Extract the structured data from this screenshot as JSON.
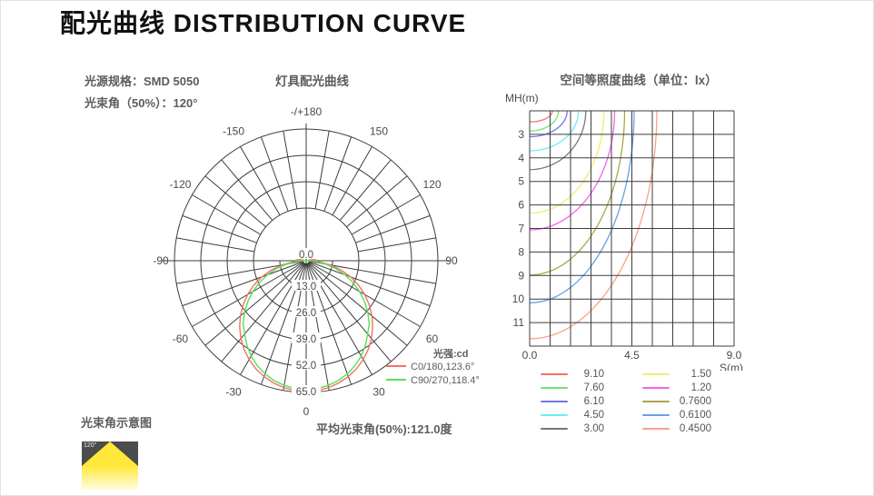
{
  "page_title": "配光曲线 DISTRIBUTION CURVE",
  "left_panel": {
    "spec_line1": "光源规格：SMD 5050",
    "spec_line2": "光束角（50%）：120°",
    "avg_beam_text": "平均光束角(50%):121.0度",
    "beam_schematic": {
      "label": "光束角示意图",
      "angle_text": "120°"
    }
  },
  "colors": {
    "grid_line": "#3d3d3d",
    "label_text": "#4a4a4a",
    "c0_curve": "#f47068",
    "c90_curve": "#57e057"
  },
  "chart_data": [
    {
      "type": "line",
      "variant": "polar-photometric",
      "title": "灯具配光曲线",
      "unit_label": "光强:cd",
      "rmax": 65,
      "ring_labels": [
        "0.0",
        "13.0",
        "26.0",
        "39.0",
        "52.0",
        "65.0"
      ],
      "angle_labels": [
        {
          "deg": 180,
          "label": "-/+180"
        },
        {
          "deg": 150,
          "label": "150"
        },
        {
          "deg": 120,
          "label": "120"
        },
        {
          "deg": 90,
          "label": "90"
        },
        {
          "deg": 60,
          "label": "60"
        },
        {
          "deg": 30,
          "label": "30"
        },
        {
          "deg": 0,
          "label": "0"
        },
        {
          "deg": -30,
          "label": "-30"
        },
        {
          "deg": -60,
          "label": "-60"
        },
        {
          "deg": -90,
          "label": "-90"
        },
        {
          "deg": -120,
          "label": "-120"
        },
        {
          "deg": -150,
          "label": "-150"
        }
      ],
      "series": [
        {
          "name": "C0/180,123.6°",
          "color": "#f47068",
          "angle_start": 0,
          "angle_step": 5,
          "cd": [
            64.5,
            64.3,
            63.6,
            62.4,
            60.8,
            58.8,
            56.3,
            53.4,
            50.1,
            46.4,
            42.4,
            38.0,
            33.3,
            28.5,
            23.3,
            17.8,
            12.2,
            6.3,
            3.5,
            5.0,
            3.0,
            0
          ]
        },
        {
          "name": "C90/270,118.4°",
          "color": "#57e057",
          "angle_start": 0,
          "angle_step": 5,
          "cd": [
            63.5,
            63.3,
            62.5,
            61.2,
            59.4,
            57.1,
            54.3,
            51.0,
            47.2,
            44.0,
            39.7,
            35.2,
            30.4,
            25.5,
            20.4,
            15.2,
            9.9,
            4.8,
            1.2,
            0.8,
            0.4,
            0
          ]
        }
      ],
      "footer_text": "平均光束角(50%):121.0度"
    },
    {
      "type": "line",
      "variant": "iso-lux",
      "title": "空间等照度曲线（单位：lx）",
      "x_axis": {
        "label": "S(m)",
        "ticks": [
          "0.0",
          "4.5",
          "9.0"
        ],
        "range": [
          0,
          9
        ]
      },
      "y_axis": {
        "label": "MH(m)",
        "ticks": [
          "3",
          "4",
          "5",
          "6",
          "7",
          "8",
          "9",
          "10",
          "11"
        ],
        "range": [
          2,
          12
        ]
      },
      "grid": {
        "cols": 10,
        "rows": 10
      },
      "curves": [
        {
          "lux": "9.10",
          "color": "#f47068",
          "mh_crossing": 2.47,
          "s_top_crossing": 1.0
        },
        {
          "lux": "7.60",
          "color": "#6fe46f",
          "mh_crossing": 2.86,
          "s_top_crossing": 1.27
        },
        {
          "lux": "6.10",
          "color": "#7474ec",
          "mh_crossing": 3.1,
          "s_top_crossing": 1.65
        },
        {
          "lux": "4.50",
          "color": "#6ceeee",
          "mh_crossing": 3.7,
          "s_top_crossing": 2.15
        },
        {
          "lux": "3.00",
          "color": "#787878",
          "mh_crossing": 4.5,
          "s_top_crossing": 2.47
        },
        {
          "lux": "1.50",
          "color": "#eded6e",
          "mh_crossing": 6.35,
          "s_top_crossing": 3.27
        },
        {
          "lux": "1.20",
          "color": "#f263f2",
          "mh_crossing": 7.06,
          "s_top_crossing": 3.74
        },
        {
          "lux": "0.7600",
          "color": "#a8a844",
          "mh_crossing": 8.98,
          "s_top_crossing": 4.18
        },
        {
          "lux": "0.6100",
          "color": "#67a0e8",
          "mh_crossing": 10.16,
          "s_top_crossing": 4.6
        },
        {
          "lux": "0.4500",
          "color": "#f7a284",
          "mh_crossing": 11.69,
          "s_top_crossing": 5.6
        }
      ]
    }
  ]
}
